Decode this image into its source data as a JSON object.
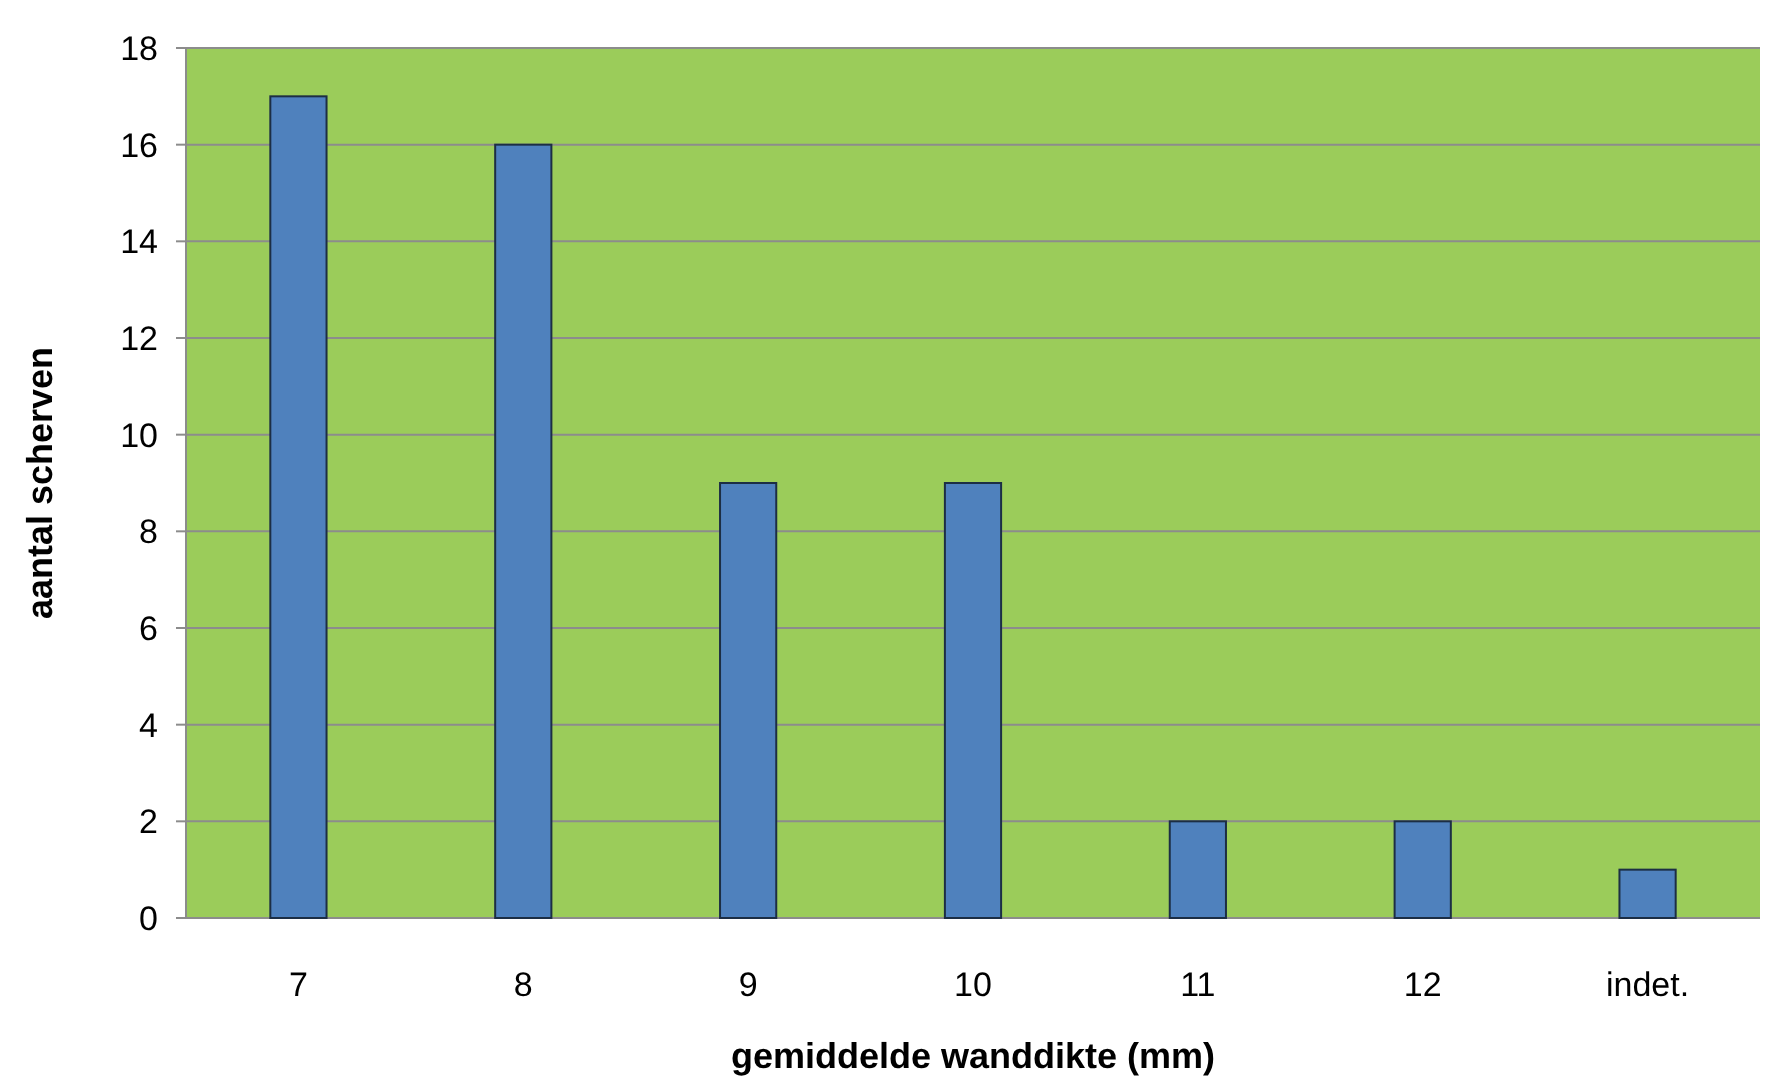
{
  "chart_data": {
    "type": "bar",
    "xlabel": "gemiddelde wanddikte (mm)",
    "ylabel": "aantal scherven",
    "categories": [
      "7",
      "8",
      "9",
      "10",
      "11",
      "12",
      "indet."
    ],
    "values": [
      17,
      16,
      9,
      9,
      2,
      2,
      1
    ],
    "color": "#4f81bd",
    "ylim": [
      0,
      18
    ],
    "yticks": [
      0,
      2,
      4,
      6,
      8,
      10,
      12,
      14,
      16,
      18
    ],
    "grid": "y"
  }
}
